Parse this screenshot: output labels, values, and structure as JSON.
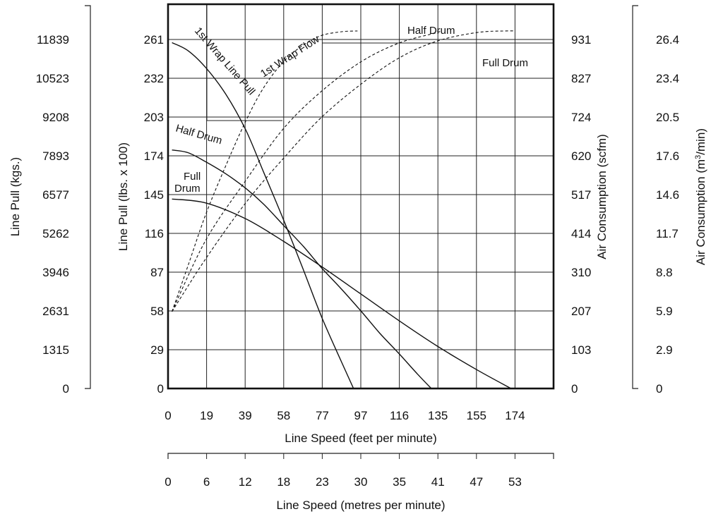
{
  "chart_data": {
    "type": "line",
    "title": "",
    "x_axes": [
      {
        "position": "bottom",
        "label": "Line Speed (feet per minute)",
        "ticks": [
          "0",
          "19",
          "39",
          "58",
          "77",
          "97",
          "116",
          "135",
          "155",
          "174"
        ],
        "range": [
          0,
          193.3
        ]
      },
      {
        "position": "bottom-secondary",
        "label": "Line Speed (metres per minute)",
        "ticks": [
          "0",
          "6",
          "12",
          "18",
          "23",
          "30",
          "35",
          "41",
          "47",
          "53"
        ]
      }
    ],
    "y_axes": [
      {
        "position": "left-outer",
        "label": "Line Pull (kgs.)",
        "ticks": [
          "0",
          "1315",
          "2631",
          "3946",
          "5262",
          "6577",
          "7893",
          "9208",
          "10523",
          "11839"
        ]
      },
      {
        "position": "left",
        "label": "Line Pull (lbs. x 100)",
        "ticks": [
          "0",
          "29",
          "58",
          "87",
          "116",
          "145",
          "174",
          "203",
          "232",
          "261"
        ],
        "range": [
          0,
          290
        ]
      },
      {
        "position": "right",
        "label": "Air Consumption (scfm)",
        "ticks": [
          "0",
          "103",
          "207",
          "310",
          "414",
          "517",
          "620",
          "724",
          "827",
          "931"
        ],
        "range": [
          0,
          1034
        ]
      },
      {
        "position": "right-outer",
        "label_parts": [
          "Air Consumption (m",
          "3",
          "/min)"
        ],
        "ticks": [
          "0",
          "2.9",
          "5.9",
          "8.8",
          "11.7",
          "14.6",
          "17.6",
          "20.5",
          "23.4",
          "26.4"
        ]
      }
    ],
    "grid": true,
    "series": [
      {
        "name": "1st Wrap Line Pull",
        "axis": "Line Pull (lbs. x 100)",
        "style": "solid",
        "x": [
          2,
          10,
          19,
          29,
          39,
          48,
          58,
          68,
          77,
          87,
          93
        ],
        "y": [
          261,
          255,
          242,
          222,
          195,
          163,
          127,
          89,
          54,
          20,
          0
        ]
      },
      {
        "name": "Half Drum",
        "axis": "Line Pull (lbs. x 100)",
        "style": "solid",
        "x": [
          2,
          10,
          19,
          29,
          39,
          48,
          58,
          68,
          77,
          87,
          97,
          106,
          116,
          125,
          132
        ],
        "y": [
          180,
          178,
          171,
          162,
          151,
          139,
          123,
          107,
          91,
          75,
          58,
          42,
          26,
          11,
          0
        ]
      },
      {
        "name": "Full Drum",
        "axis": "Line Pull (lbs. x 100)",
        "style": "solid",
        "x": [
          2,
          19,
          39,
          58,
          77,
          97,
          116,
          135,
          155,
          172
        ],
        "y": [
          143,
          140,
          128,
          111,
          92,
          71,
          51,
          32,
          14,
          0
        ]
      },
      {
        "name": "1st Wrap Flow",
        "axis": "Air Consumption (scfm)",
        "style": "dashed",
        "x": [
          2,
          10,
          19,
          29,
          39,
          48,
          58,
          68,
          77,
          87,
          95
        ],
        "y": [
          207,
          330,
          470,
          600,
          720,
          810,
          880,
          925,
          950,
          960,
          962
        ]
      },
      {
        "name": "Half Drum",
        "axis": "Air Consumption (scfm)",
        "style": "dashed",
        "x": [
          2,
          19,
          39,
          58,
          77,
          97,
          116,
          135,
          135
        ],
        "y": [
          207,
          400,
          560,
          700,
          800,
          880,
          930,
          958,
          962
        ]
      },
      {
        "name": "Full Drum",
        "axis": "Air Consumption (scfm)",
        "style": "dashed",
        "x": [
          2,
          19,
          39,
          58,
          77,
          97,
          116,
          135,
          155,
          169,
          174
        ],
        "y": [
          207,
          350,
          500,
          620,
          730,
          820,
          890,
          935,
          958,
          962,
          962
        ]
      }
    ],
    "annotations": [
      {
        "text": "1st Wrap Line Pull"
      },
      {
        "text": "1st Wrap Flow"
      },
      {
        "text": "Half Drum"
      },
      {
        "text": "Full Drum"
      },
      {
        "text": "Half Drum"
      },
      {
        "text": "Full"
      },
      {
        "text": "Drum"
      }
    ]
  }
}
